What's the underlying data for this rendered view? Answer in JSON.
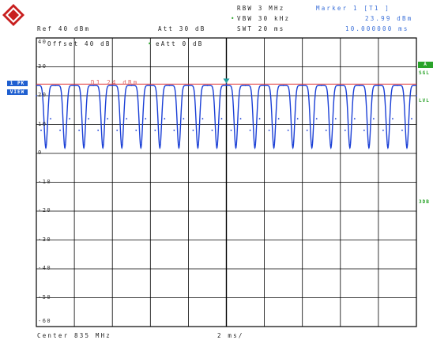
{
  "header": {
    "rbw": "RBW 3 MHz",
    "vbw": "VBW 30 kHz",
    "swt": "SWT 20 ms",
    "marker_title": "Marker 1 [T1 ]",
    "marker_level": "23.99 dBm",
    "marker_time": "10.000000 ms",
    "ref": "Ref  40 dBm",
    "att": "Att  30 dB"
  },
  "plot_labels": {
    "offset": "Offset  40 dB",
    "eatt": "eAtt 0 dB",
    "d1_line": "D1 24 dBm",
    "center": "Center 835 MHz",
    "sweep_div": "2 ms/"
  },
  "left_labels": {
    "trace_group": "1 PK",
    "view": "VIEW"
  },
  "right_labels": {
    "a_box": "A",
    "sgl": "SGL",
    "lvl": "LVL",
    "db3": "3DB"
  },
  "y_ticks": [
    "40",
    "30",
    "20",
    "10",
    "0",
    "-10",
    "-20",
    "-30",
    "-40",
    "-50",
    "-60"
  ],
  "colors": {
    "trace": "#1a3fd6",
    "display_line": "#e03030",
    "marker": "#1e9e9e",
    "accent_green": "#2aa32a",
    "label_blue": "#3a6fd8"
  },
  "chart_data": {
    "type": "line",
    "title": "",
    "xlabel": "",
    "ylabel": "",
    "x_unit": "ms",
    "y_unit": "dBm",
    "xlim": [
      0,
      20
    ],
    "ylim": [
      -60,
      40
    ],
    "display_line_dbm": 24,
    "marker": {
      "x": 10.0,
      "y": 23.99
    },
    "series": [
      {
        "period_ms": 1.0,
        "high_dbm": 23.5,
        "low_dbm": 2.0,
        "x": [
          0.0,
          0.25,
          0.5,
          0.75,
          1.0,
          1.25,
          1.5,
          1.75,
          2.0,
          2.25,
          2.5,
          2.75,
          3.0,
          3.25,
          3.5,
          3.75,
          4.0,
          4.25,
          4.5,
          4.75,
          5.0,
          5.25,
          5.5,
          5.75,
          6.0,
          6.25,
          6.5,
          6.75,
          7.0,
          7.25,
          7.5,
          7.75,
          8.0,
          8.25,
          8.5,
          8.75,
          9.0,
          9.25,
          9.5,
          9.75,
          10.0,
          10.25,
          10.5,
          10.75,
          11.0,
          11.25,
          11.5,
          11.75,
          12.0,
          12.25,
          12.5,
          12.75,
          13.0,
          13.25,
          13.5,
          13.75,
          14.0,
          14.25,
          14.5,
          14.75,
          15.0,
          15.25,
          15.5,
          15.75,
          16.0,
          16.25,
          16.5,
          16.75,
          17.0,
          17.25,
          17.5,
          17.75,
          18.0,
          18.25,
          18.5,
          18.75,
          19.0,
          19.25,
          19.5,
          19.75,
          20.0
        ],
        "y": [
          20,
          8,
          2,
          12,
          23.5,
          8,
          2,
          12,
          23.5,
          8,
          2,
          12,
          23.5,
          8,
          2,
          12,
          23.5,
          8,
          2,
          12,
          23.5,
          8,
          2,
          12,
          23.5,
          8,
          2,
          12,
          23.5,
          8,
          2,
          12,
          23.5,
          8,
          2,
          12,
          23.5,
          8,
          2,
          12,
          23.99,
          8,
          2,
          12,
          23.5,
          8,
          2,
          12,
          23.5,
          8,
          2,
          12,
          23.5,
          8,
          2,
          12,
          23.5,
          8,
          2,
          12,
          23.5,
          8,
          2,
          12,
          23.5,
          8,
          2,
          12,
          23.5,
          8,
          2,
          12,
          23.5,
          8,
          2,
          12,
          23.5,
          8,
          2,
          12,
          20
        ]
      }
    ]
  }
}
